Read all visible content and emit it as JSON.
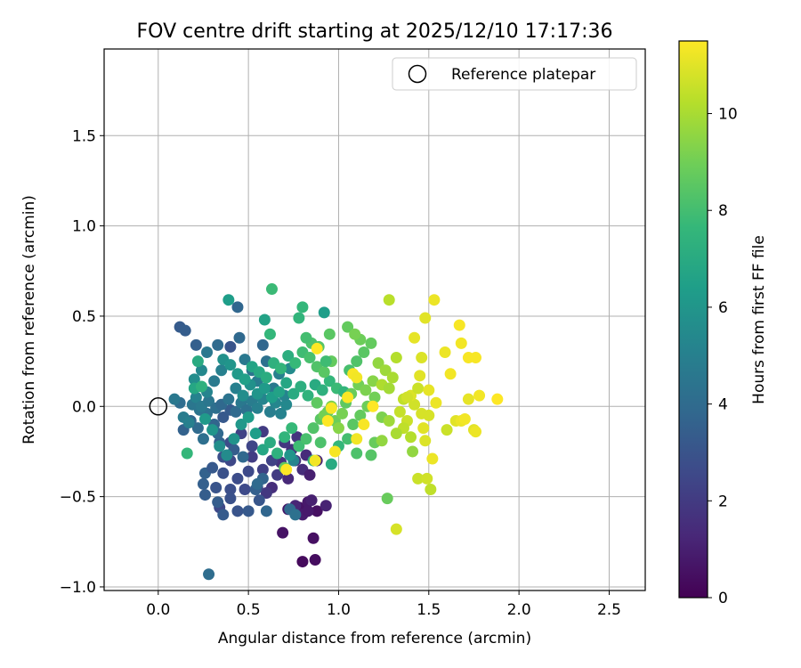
{
  "chart_data": {
    "type": "scatter",
    "title": "FOV centre drift starting at 2025/12/10 17:17:36",
    "xlabel": "Angular distance from reference (arcmin)",
    "ylabel": "Rotation from reference (arcmin)",
    "xlim": [
      -0.3,
      2.7
    ],
    "ylim": [
      -1.02,
      1.98
    ],
    "xticks": [
      0.0,
      0.5,
      1.0,
      1.5,
      2.0,
      2.5
    ],
    "xtick_labels": [
      "0.0",
      "0.5",
      "1.0",
      "1.5",
      "2.0",
      "2.5"
    ],
    "yticks": [
      -1.0,
      -0.5,
      0.0,
      0.5,
      1.0,
      1.5
    ],
    "ytick_labels": [
      "−1.0",
      "−0.5",
      "0.0",
      "0.5",
      "1.0",
      "1.5"
    ],
    "grid": true,
    "legend": {
      "position": "top-right",
      "entries": [
        "Reference platepar"
      ]
    },
    "reference_point": {
      "x": 0.0,
      "y": 0.0,
      "label": "Reference platepar"
    },
    "colorbar": {
      "label": "Hours from first FF file",
      "min": 0,
      "max": 11.5,
      "ticks": [
        0,
        2,
        4,
        6,
        8,
        10
      ],
      "tick_labels": [
        "0",
        "2",
        "4",
        "6",
        "8",
        "10"
      ],
      "colormap": "viridis",
      "colormap_stops": [
        "#440154",
        "#482878",
        "#3e4989",
        "#31688e",
        "#26828e",
        "#1f9e89",
        "#35b779",
        "#6ece58",
        "#b5de2b",
        "#fde725"
      ]
    },
    "points": [
      [
        0.8,
        -0.86,
        0.3
      ],
      [
        0.87,
        -0.85,
        0.4
      ],
      [
        0.86,
        -0.73,
        0.5
      ],
      [
        0.69,
        -0.7,
        0.6
      ],
      [
        0.72,
        -0.57,
        0.7
      ],
      [
        0.78,
        -0.56,
        0.6
      ],
      [
        0.83,
        -0.53,
        0.8
      ],
      [
        0.8,
        -0.6,
        0.9
      ],
      [
        0.88,
        -0.58,
        0.5
      ],
      [
        0.85,
        -0.52,
        1.0
      ],
      [
        0.93,
        -0.55,
        1.1
      ],
      [
        0.76,
        -0.55,
        1.2
      ],
      [
        0.83,
        -0.58,
        0.8
      ],
      [
        0.63,
        -0.45,
        1.5
      ],
      [
        0.72,
        -0.4,
        1.3
      ],
      [
        0.8,
        -0.35,
        1.5
      ],
      [
        0.84,
        -0.38,
        1.0
      ],
      [
        0.68,
        -0.31,
        1.7
      ],
      [
        0.76,
        -0.3,
        1.8
      ],
      [
        0.82,
        -0.27,
        1.4
      ],
      [
        0.88,
        -0.3,
        1.2
      ],
      [
        0.6,
        -0.48,
        1.9
      ],
      [
        0.66,
        -0.38,
        2.0
      ],
      [
        0.74,
        -0.24,
        1.6
      ],
      [
        0.58,
        -0.35,
        2.2
      ],
      [
        0.7,
        -0.2,
        1.9
      ],
      [
        0.77,
        -0.17,
        1.7
      ],
      [
        0.63,
        -0.3,
        2.3
      ],
      [
        0.55,
        -0.45,
        2.4
      ],
      [
        0.52,
        -0.28,
        2.1
      ],
      [
        0.58,
        -0.14,
        2.0
      ],
      [
        0.48,
        -0.46,
        2.6
      ],
      [
        0.44,
        -0.4,
        2.7
      ],
      [
        0.4,
        -0.46,
        2.8
      ],
      [
        0.36,
        -0.37,
        2.9
      ],
      [
        0.34,
        -0.56,
        2.5
      ],
      [
        0.4,
        -0.3,
        2.5
      ],
      [
        0.5,
        -0.36,
        2.6
      ],
      [
        0.52,
        -0.22,
        2.4
      ],
      [
        0.46,
        -0.15,
        2.3
      ],
      [
        0.4,
        -0.2,
        2.7
      ],
      [
        0.36,
        -0.28,
        2.8
      ],
      [
        0.44,
        -0.58,
        3.0
      ],
      [
        0.5,
        -0.58,
        3.2
      ],
      [
        0.56,
        -0.52,
        3.1
      ],
      [
        0.36,
        -0.6,
        3.3
      ],
      [
        0.33,
        -0.53,
        3.4
      ],
      [
        0.26,
        -0.49,
        3.4
      ],
      [
        0.25,
        -0.43,
        3.5
      ],
      [
        0.26,
        -0.37,
        3.6
      ],
      [
        0.3,
        -0.34,
        3.2
      ],
      [
        0.32,
        -0.45,
        3.0
      ],
      [
        0.4,
        -0.51,
        2.9
      ],
      [
        0.54,
        -0.46,
        3.5
      ],
      [
        0.58,
        -0.4,
        3.7
      ],
      [
        0.6,
        -0.58,
        3.8
      ],
      [
        0.55,
        -0.43,
        4.0
      ],
      [
        0.47,
        -0.28,
        3.9
      ],
      [
        0.42,
        -0.24,
        3.4
      ],
      [
        0.34,
        -0.2,
        3.6
      ],
      [
        0.28,
        -0.93,
        4.1
      ],
      [
        0.14,
        -0.13,
        3.6
      ],
      [
        0.18,
        -0.08,
        3.8
      ],
      [
        0.22,
        -0.12,
        4.0
      ],
      [
        0.25,
        -0.18,
        4.2
      ],
      [
        0.31,
        -0.1,
        3.7
      ],
      [
        0.36,
        -0.06,
        3.2
      ],
      [
        0.4,
        -0.02,
        3.3
      ],
      [
        0.33,
        -0.15,
        3.9
      ],
      [
        0.27,
        -0.04,
        4.3
      ],
      [
        0.23,
        -0.02,
        4.4
      ],
      [
        0.19,
        0.01,
        4.5
      ],
      [
        0.12,
        0.02,
        4.1
      ],
      [
        0.09,
        0.04,
        4.6
      ],
      [
        0.14,
        -0.06,
        4.8
      ],
      [
        0.17,
        -0.09,
        5.0
      ],
      [
        0.21,
        0.05,
        5.1
      ],
      [
        0.24,
        0.0,
        4.7
      ],
      [
        0.28,
        0.03,
        4.5
      ],
      [
        0.32,
        -0.01,
        4.2
      ],
      [
        0.35,
        0.01,
        3.9
      ],
      [
        0.39,
        0.04,
        4.4
      ],
      [
        0.43,
        -0.03,
        4.0
      ],
      [
        0.46,
        0.02,
        4.6
      ],
      [
        0.49,
        -0.02,
        4.3
      ],
      [
        0.52,
        0.03,
        4.8
      ],
      [
        0.55,
        -0.01,
        5.0
      ],
      [
        0.58,
        0.04,
        5.2
      ],
      [
        0.62,
        -0.03,
        4.9
      ],
      [
        0.65,
        0.02,
        5.3
      ],
      [
        0.68,
        -0.04,
        5.1
      ],
      [
        0.71,
        0.01,
        5.4
      ],
      [
        0.12,
        0.44,
        3.3
      ],
      [
        0.15,
        0.42,
        3.4
      ],
      [
        0.21,
        0.34,
        3.5
      ],
      [
        0.27,
        0.3,
        4.6
      ],
      [
        0.33,
        0.34,
        4.0
      ],
      [
        0.4,
        0.33,
        3.0
      ],
      [
        0.45,
        0.38,
        3.9
      ],
      [
        0.58,
        0.34,
        3.8
      ],
      [
        0.44,
        0.55,
        3.8
      ],
      [
        0.39,
        0.59,
        6.4
      ],
      [
        0.63,
        0.65,
        7.8
      ],
      [
        0.59,
        0.48,
        6.6
      ],
      [
        0.62,
        0.4,
        7.6
      ],
      [
        0.78,
        0.49,
        7.5
      ],
      [
        0.8,
        0.55,
        7.6
      ],
      [
        0.92,
        0.52,
        6.4
      ],
      [
        0.48,
        0.26,
        4.6
      ],
      [
        0.52,
        0.2,
        4.4
      ],
      [
        0.55,
        0.14,
        4.8
      ],
      [
        0.6,
        0.25,
        4.3
      ],
      [
        0.64,
        0.1,
        4.6
      ],
      [
        0.67,
        0.18,
        5.0
      ],
      [
        0.7,
        0.06,
        5.2
      ],
      [
        0.73,
        0.21,
        5.5
      ],
      [
        0.35,
        0.2,
        5.0
      ],
      [
        0.31,
        0.14,
        4.7
      ],
      [
        0.27,
        0.08,
        5.2
      ],
      [
        0.24,
        0.2,
        5.4
      ],
      [
        0.2,
        0.15,
        5.6
      ],
      [
        0.43,
        0.1,
        5.0
      ],
      [
        0.47,
        0.06,
        5.6
      ],
      [
        0.51,
        0.12,
        5.8
      ],
      [
        0.55,
        0.07,
        6.0
      ],
      [
        0.59,
        0.1,
        6.2
      ],
      [
        0.63,
        0.05,
        6.4
      ],
      [
        0.67,
        0.08,
        6.6
      ],
      [
        0.71,
        0.13,
        6.8
      ],
      [
        0.75,
        0.07,
        7.0
      ],
      [
        0.79,
        0.11,
        7.2
      ],
      [
        0.83,
        0.06,
        7.4
      ],
      [
        0.87,
        0.12,
        7.0
      ],
      [
        0.91,
        0.09,
        7.3
      ],
      [
        0.95,
        0.14,
        7.6
      ],
      [
        0.99,
        0.1,
        7.8
      ],
      [
        1.03,
        0.08,
        7.5
      ],
      [
        0.36,
        0.26,
        5.8
      ],
      [
        0.4,
        0.23,
        6.0
      ],
      [
        0.44,
        0.18,
        6.2
      ],
      [
        0.48,
        0.15,
        6.5
      ],
      [
        0.52,
        0.22,
        6.7
      ],
      [
        0.56,
        0.19,
        6.9
      ],
      [
        0.6,
        0.16,
        7.1
      ],
      [
        0.64,
        0.24,
        7.3
      ],
      [
        0.68,
        0.21,
        7.5
      ],
      [
        0.72,
        0.28,
        7.2
      ],
      [
        0.76,
        0.24,
        7.7
      ],
      [
        0.8,
        0.3,
        7.9
      ],
      [
        0.84,
        0.27,
        8.1
      ],
      [
        0.88,
        0.22,
        8.3
      ],
      [
        0.92,
        0.19,
        8.5
      ],
      [
        0.96,
        0.25,
        8.7
      ],
      [
        0.26,
        -0.07,
        6.2
      ],
      [
        0.3,
        -0.13,
        6.0
      ],
      [
        0.34,
        -0.22,
        5.7
      ],
      [
        0.38,
        -0.27,
        5.5
      ],
      [
        0.42,
        -0.18,
        5.9
      ],
      [
        0.46,
        -0.1,
        6.1
      ],
      [
        0.5,
        -0.06,
        6.3
      ],
      [
        0.54,
        -0.15,
        6.4
      ],
      [
        0.58,
        -0.24,
        6.8
      ],
      [
        0.62,
        -0.2,
        7.0
      ],
      [
        0.66,
        -0.26,
        7.3
      ],
      [
        0.7,
        -0.17,
        7.5
      ],
      [
        0.74,
        -0.12,
        7.7
      ],
      [
        0.78,
        -0.22,
        7.9
      ],
      [
        0.82,
        -0.18,
        8.1
      ],
      [
        0.86,
        -0.12,
        8.3
      ],
      [
        0.9,
        -0.07,
        8.5
      ],
      [
        0.94,
        -0.03,
        8.7
      ],
      [
        0.98,
        -0.08,
        8.9
      ],
      [
        1.02,
        -0.04,
        9.1
      ],
      [
        0.16,
        -0.26,
        7.6
      ],
      [
        0.2,
        0.1,
        6.8
      ],
      [
        0.22,
        0.25,
        7.0
      ],
      [
        0.24,
        0.11,
        7.3
      ],
      [
        0.75,
        -0.3,
        5.2
      ],
      [
        0.73,
        -0.57,
        4.0
      ],
      [
        0.76,
        -0.6,
        4.3
      ],
      [
        0.73,
        -0.27,
        6.0
      ],
      [
        0.7,
        -0.34,
        8.6
      ],
      [
        0.86,
        -0.3,
        7.4
      ],
      [
        0.9,
        -0.2,
        8.2
      ],
      [
        0.96,
        -0.32,
        7.0
      ],
      [
        1.0,
        -0.22,
        7.6
      ],
      [
        1.05,
        -0.18,
        8.0
      ],
      [
        1.1,
        -0.26,
        8.2
      ],
      [
        1.18,
        -0.27,
        8.4
      ],
      [
        1.2,
        -0.2,
        8.8
      ],
      [
        1.08,
        -0.1,
        8.5
      ],
      [
        1.12,
        -0.05,
        8.7
      ],
      [
        1.16,
        0.0,
        8.9
      ],
      [
        1.2,
        0.05,
        9.0
      ],
      [
        1.24,
        -0.06,
        9.2
      ],
      [
        1.04,
        0.02,
        8.6
      ],
      [
        1.07,
        0.07,
        8.8
      ],
      [
        1.11,
        0.12,
        9.0
      ],
      [
        1.15,
        0.09,
        9.2
      ],
      [
        1.19,
        0.14,
        9.4
      ],
      [
        1.06,
        0.2,
        8.1
      ],
      [
        1.1,
        0.25,
        8.3
      ],
      [
        1.14,
        0.3,
        8.5
      ],
      [
        1.18,
        0.35,
        8.7
      ],
      [
        1.12,
        0.37,
        8.9
      ],
      [
        1.05,
        0.44,
        8.7
      ],
      [
        1.09,
        0.4,
        9.1
      ],
      [
        0.95,
        0.4,
        8.5
      ],
      [
        0.93,
        0.25,
        7.9
      ],
      [
        0.85,
        0.35,
        8.2
      ],
      [
        0.82,
        0.38,
        8.0
      ],
      [
        0.89,
        0.33,
        8.4
      ],
      [
        0.88,
        0.02,
        8.6
      ],
      [
        0.92,
        -0.05,
        9.0
      ],
      [
        0.96,
        0.0,
        9.2
      ],
      [
        1.0,
        -0.12,
        9.4
      ],
      [
        1.22,
        0.24,
        9.6
      ],
      [
        1.26,
        0.2,
        9.8
      ],
      [
        1.3,
        0.16,
        10.0
      ],
      [
        1.24,
        0.12,
        10.1
      ],
      [
        1.28,
        0.1,
        9.9
      ],
      [
        1.32,
        0.27,
        10.2
      ],
      [
        1.28,
        0.59,
        10.3
      ],
      [
        1.36,
        0.04,
        10.4
      ],
      [
        1.34,
        -0.03,
        10.5
      ],
      [
        1.38,
        -0.08,
        10.6
      ],
      [
        1.42,
        0.01,
        10.7
      ],
      [
        1.46,
        -0.04,
        10.8
      ],
      [
        1.4,
        0.06,
        10.9
      ],
      [
        1.44,
        0.1,
        10.6
      ],
      [
        1.36,
        -0.12,
        10.4
      ],
      [
        1.4,
        -0.17,
        10.2
      ],
      [
        1.32,
        -0.15,
        10.0
      ],
      [
        1.28,
        -0.08,
        9.8
      ],
      [
        1.24,
        -0.19,
        9.6
      ],
      [
        1.41,
        -0.25,
        9.6
      ],
      [
        1.27,
        -0.51,
        8.8
      ],
      [
        1.32,
        -0.68,
        10.8
      ],
      [
        1.44,
        -0.4,
        10.6
      ],
      [
        1.49,
        -0.4,
        10.7
      ],
      [
        1.51,
        -0.46,
        10.4
      ],
      [
        1.52,
        -0.29,
        11.2
      ],
      [
        1.48,
        -0.19,
        10.9
      ],
      [
        1.5,
        -0.05,
        10.8
      ],
      [
        1.47,
        -0.12,
        11.0
      ],
      [
        1.46,
        0.27,
        10.9
      ],
      [
        1.45,
        0.17,
        11.0
      ],
      [
        1.5,
        0.09,
        11.1
      ],
      [
        1.54,
        0.02,
        11.2
      ],
      [
        1.59,
        0.3,
        11.2
      ],
      [
        1.62,
        0.18,
        11.3
      ],
      [
        1.65,
        -0.08,
        11.0
      ],
      [
        1.68,
        -0.08,
        11.2
      ],
      [
        1.68,
        0.35,
        11.3
      ],
      [
        1.72,
        0.27,
        11.4
      ],
      [
        1.76,
        0.27,
        11.4
      ],
      [
        1.78,
        0.06,
        11.3
      ],
      [
        1.88,
        0.04,
        11.5
      ],
      [
        1.6,
        -0.13,
        10.6
      ],
      [
        1.75,
        -0.13,
        11.0
      ],
      [
        1.76,
        -0.14,
        11.2
      ],
      [
        1.7,
        -0.07,
        11.3
      ],
      [
        1.72,
        0.04,
        11.1
      ],
      [
        1.67,
        0.45,
        11.4
      ],
      [
        1.53,
        0.59,
        11.2
      ],
      [
        1.48,
        0.49,
        11.0
      ],
      [
        1.42,
        0.38,
        11.1
      ],
      [
        1.38,
        0.05,
        10.7
      ],
      [
        1.08,
        0.18,
        11.4
      ],
      [
        1.1,
        0.16,
        11.3
      ],
      [
        1.05,
        0.05,
        11.5
      ],
      [
        1.14,
        -0.1,
        11.4
      ],
      [
        1.1,
        -0.18,
        11.3
      ],
      [
        0.98,
        -0.25,
        11.4
      ],
      [
        0.94,
        -0.08,
        11.5
      ],
      [
        0.96,
        -0.01,
        11.4
      ],
      [
        0.88,
        0.32,
        11.5
      ],
      [
        0.87,
        -0.3,
        11.3
      ],
      [
        0.71,
        -0.35,
        11.5
      ],
      [
        1.19,
        0.0,
        11.5
      ]
    ]
  }
}
